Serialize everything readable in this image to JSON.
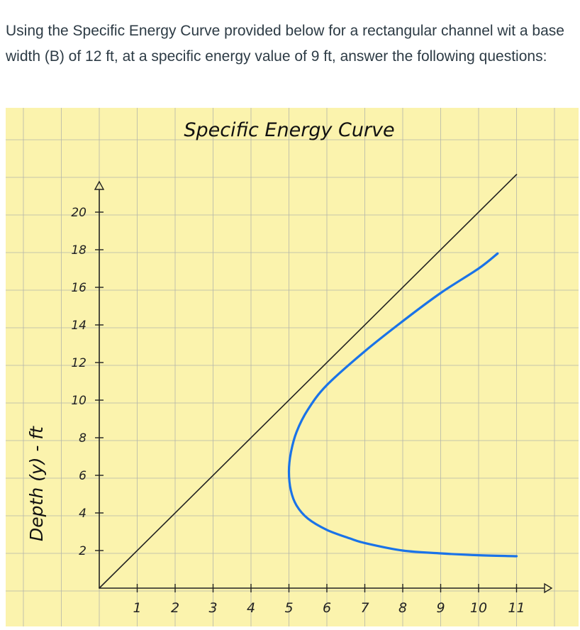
{
  "question": {
    "text": "Using the Specific Energy Curve provided below for a rectangular channel wit a base width (B) of 12 ft, at a specific energy value of 9 ft, answer the following questions:"
  },
  "chart_data": {
    "type": "line",
    "title": "Specific Energy Curve",
    "xlabel": "",
    "ylabel": "Depth (y) - ft",
    "x_ticks": [
      "1",
      "2",
      "3",
      "4",
      "5",
      "6",
      "7",
      "8",
      "9",
      "10",
      "11"
    ],
    "y_ticks": [
      "2",
      "4",
      "6",
      "8",
      "10",
      "12",
      "14",
      "16",
      "18",
      "20"
    ],
    "xlim": [
      0,
      11
    ],
    "ylim": [
      0,
      22
    ],
    "grid": true,
    "series": [
      {
        "x": [
          0,
          11
        ],
        "y": [
          0,
          22
        ],
        "color": "#222222"
      },
      {
        "x": [
          11.0,
          10.0,
          9.0,
          8.0,
          7.0,
          6.6,
          6.0,
          5.5,
          5.2,
          5.05,
          5.0,
          5.05,
          5.2,
          5.5,
          6.0,
          7.0,
          8.0,
          9.0,
          10.0,
          10.5
        ],
        "y": [
          1.7,
          1.75,
          1.85,
          2.0,
          2.4,
          2.65,
          3.1,
          3.7,
          4.4,
          5.2,
          6.2,
          7.2,
          8.3,
          9.5,
          10.8,
          12.6,
          14.2,
          15.7,
          17.0,
          17.8
        ],
        "color": "#1a73e8"
      }
    ]
  },
  "colors": {
    "paper": "#fbf3ad",
    "grid": "#b5b5aa",
    "ink": "#222222",
    "curve": "#1a73e8",
    "text": "#2d3b45"
  }
}
